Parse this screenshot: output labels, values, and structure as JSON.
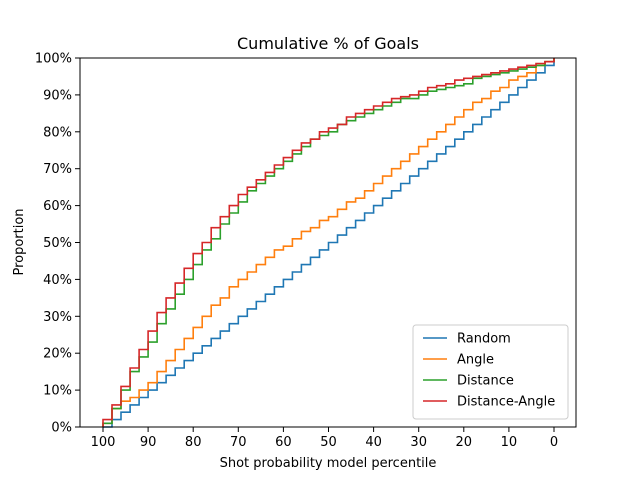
{
  "chart_data": {
    "type": "line",
    "title": "Cumulative % of Goals",
    "xlabel": "Shot probability model percentile",
    "ylabel": "Proportion",
    "xlim": [
      100,
      0
    ],
    "ylim": [
      0,
      1
    ],
    "x_ticks": [
      100,
      90,
      80,
      70,
      60,
      50,
      40,
      30,
      20,
      10,
      0
    ],
    "x_tick_labels": [
      "100",
      "90",
      "80",
      "70",
      "60",
      "50",
      "40",
      "30",
      "20",
      "10",
      "0"
    ],
    "y_ticks": [
      0,
      0.1,
      0.2,
      0.3,
      0.4,
      0.5,
      0.6,
      0.7,
      0.8,
      0.9,
      1.0
    ],
    "y_tick_labels": [
      "0%",
      "10%",
      "20%",
      "30%",
      "40%",
      "50%",
      "60%",
      "70%",
      "80%",
      "90%",
      "100%"
    ],
    "step": true,
    "grid": false,
    "legend_position": "lower-right",
    "x": [
      100,
      98,
      96,
      94,
      92,
      90,
      88,
      86,
      84,
      82,
      80,
      78,
      76,
      74,
      72,
      70,
      68,
      66,
      64,
      62,
      60,
      58,
      56,
      54,
      52,
      50,
      48,
      46,
      44,
      42,
      40,
      38,
      36,
      34,
      32,
      30,
      28,
      26,
      24,
      22,
      20,
      18,
      16,
      14,
      12,
      10,
      8,
      6,
      4,
      2,
      0
    ],
    "series": [
      {
        "name": "Random",
        "color": "#1f77b4",
        "values": [
          0.0,
          0.02,
          0.04,
          0.06,
          0.08,
          0.1,
          0.12,
          0.14,
          0.16,
          0.18,
          0.2,
          0.22,
          0.24,
          0.26,
          0.28,
          0.3,
          0.32,
          0.34,
          0.36,
          0.38,
          0.4,
          0.42,
          0.44,
          0.46,
          0.48,
          0.5,
          0.52,
          0.54,
          0.56,
          0.58,
          0.6,
          0.62,
          0.64,
          0.66,
          0.68,
          0.7,
          0.72,
          0.74,
          0.76,
          0.78,
          0.8,
          0.82,
          0.84,
          0.86,
          0.88,
          0.9,
          0.92,
          0.94,
          0.96,
          0.98,
          1.0
        ]
      },
      {
        "name": "Angle",
        "color": "#ff7f0e",
        "values": [
          0.01,
          0.05,
          0.07,
          0.08,
          0.1,
          0.12,
          0.15,
          0.18,
          0.21,
          0.24,
          0.27,
          0.3,
          0.33,
          0.35,
          0.38,
          0.4,
          0.42,
          0.44,
          0.46,
          0.48,
          0.49,
          0.51,
          0.53,
          0.54,
          0.56,
          0.57,
          0.59,
          0.61,
          0.62,
          0.64,
          0.66,
          0.68,
          0.7,
          0.72,
          0.74,
          0.76,
          0.78,
          0.8,
          0.82,
          0.84,
          0.86,
          0.88,
          0.89,
          0.91,
          0.92,
          0.94,
          0.95,
          0.96,
          0.98,
          0.99,
          1.0
        ]
      },
      {
        "name": "Distance",
        "color": "#2ca02c",
        "values": [
          0.01,
          0.05,
          0.1,
          0.15,
          0.19,
          0.23,
          0.28,
          0.32,
          0.36,
          0.4,
          0.44,
          0.48,
          0.51,
          0.55,
          0.58,
          0.61,
          0.64,
          0.66,
          0.68,
          0.7,
          0.72,
          0.74,
          0.76,
          0.78,
          0.79,
          0.8,
          0.82,
          0.83,
          0.84,
          0.85,
          0.86,
          0.87,
          0.88,
          0.89,
          0.89,
          0.9,
          0.91,
          0.915,
          0.92,
          0.925,
          0.93,
          0.945,
          0.95,
          0.955,
          0.96,
          0.965,
          0.97,
          0.975,
          0.98,
          0.99,
          1.0
        ]
      },
      {
        "name": "Distance-Angle",
        "color": "#d62728",
        "values": [
          0.02,
          0.06,
          0.11,
          0.16,
          0.21,
          0.26,
          0.31,
          0.35,
          0.39,
          0.43,
          0.47,
          0.5,
          0.54,
          0.57,
          0.6,
          0.63,
          0.65,
          0.67,
          0.69,
          0.71,
          0.73,
          0.75,
          0.77,
          0.78,
          0.8,
          0.81,
          0.82,
          0.84,
          0.85,
          0.86,
          0.87,
          0.88,
          0.89,
          0.895,
          0.9,
          0.91,
          0.92,
          0.925,
          0.93,
          0.94,
          0.945,
          0.95,
          0.955,
          0.96,
          0.965,
          0.97,
          0.975,
          0.98,
          0.985,
          0.99,
          1.0
        ]
      }
    ]
  }
}
